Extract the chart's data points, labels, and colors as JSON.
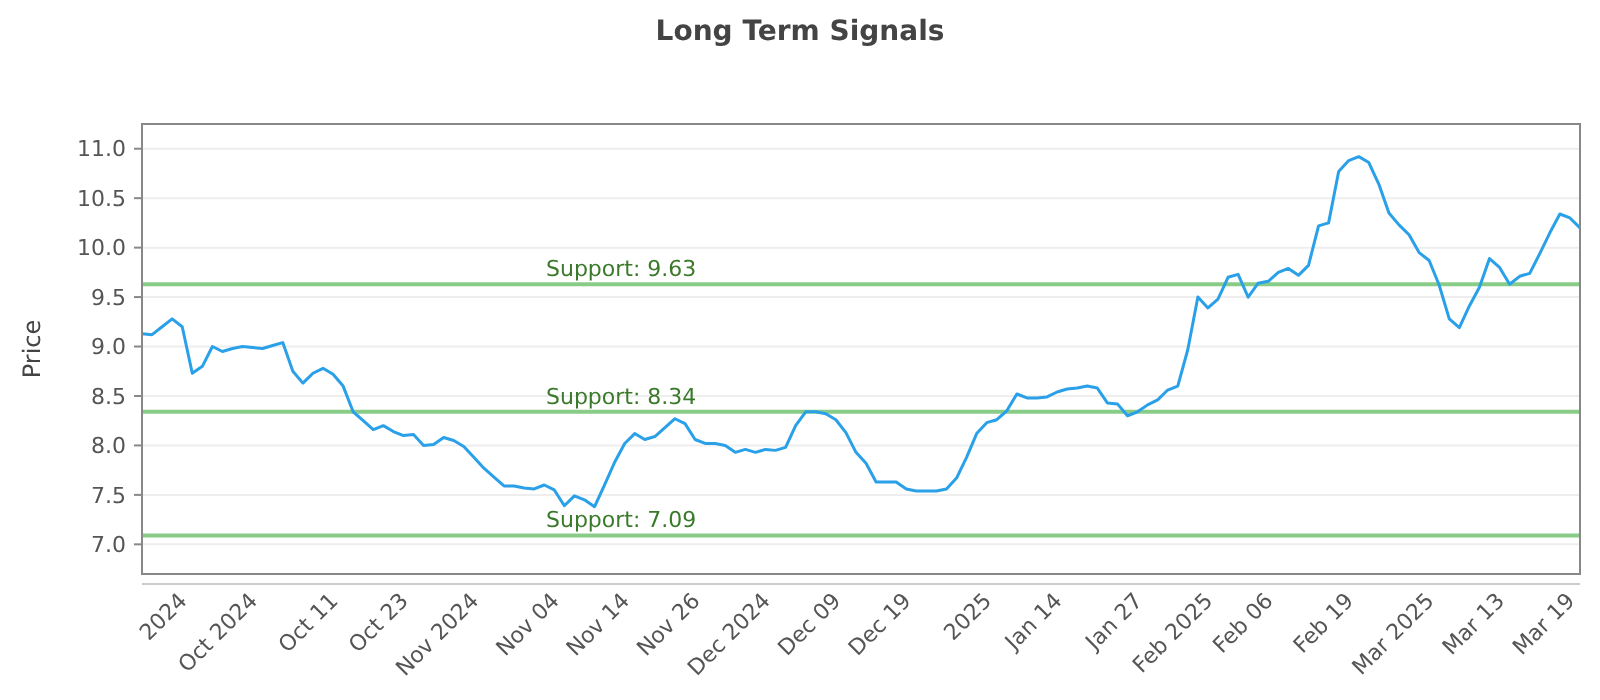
{
  "chart_data": {
    "type": "line",
    "title": "Long Term Signals",
    "ylabel": "Price",
    "categories": [
      null,
      null,
      null,
      null,
      "2024",
      null,
      null,
      null,
      null,
      null,
      null,
      "Oct 2024",
      null,
      null,
      null,
      null,
      null,
      null,
      null,
      "Oct 11",
      null,
      null,
      null,
      null,
      null,
      null,
      "Oct 23",
      null,
      null,
      null,
      null,
      null,
      null,
      "Nov 2024",
      null,
      null,
      null,
      null,
      null,
      null,
      null,
      "Nov 04",
      null,
      null,
      null,
      null,
      null,
      null,
      "Nov 14",
      null,
      null,
      null,
      null,
      null,
      null,
      "Nov 26",
      null,
      null,
      null,
      null,
      null,
      null,
      "Dec 2024",
      null,
      null,
      null,
      null,
      null,
      null,
      "Dec 09",
      null,
      null,
      null,
      null,
      null,
      null,
      "Dec 19",
      null,
      null,
      null,
      null,
      null,
      null,
      null,
      "2025",
      null,
      null,
      null,
      null,
      null,
      null,
      "Jan 14",
      null,
      null,
      null,
      null,
      null,
      null,
      null,
      "Jan 27",
      null,
      null,
      null,
      null,
      null,
      null,
      "Feb 2025",
      null,
      null,
      null,
      null,
      null,
      "Feb 06",
      null,
      null,
      null,
      null,
      null,
      null,
      null,
      "Feb 19",
      null,
      null,
      null,
      null,
      null,
      null,
      null,
      "Mar 2025",
      null,
      null,
      null,
      null,
      null,
      null,
      "Mar 13",
      null,
      null,
      null,
      null,
      null,
      null,
      "Mar 19",
      null
    ],
    "series": [
      {
        "color": "#2aa0e8",
        "values": [
          9.13,
          9.12,
          9.2,
          9.28,
          9.2,
          8.73,
          8.8,
          9.0,
          8.95,
          8.98,
          9.0,
          8.99,
          8.98,
          9.01,
          9.04,
          8.75,
          8.63,
          8.73,
          8.78,
          8.72,
          8.6,
          8.34,
          8.25,
          8.16,
          8.2,
          8.14,
          8.1,
          8.11,
          8.0,
          8.01,
          8.08,
          8.05,
          7.99,
          7.88,
          7.77,
          7.68,
          7.59,
          7.59,
          7.57,
          7.56,
          7.6,
          7.55,
          7.39,
          7.49,
          7.45,
          7.38,
          7.6,
          7.83,
          8.02,
          8.12,
          8.06,
          8.09,
          8.18,
          8.27,
          8.22,
          8.06,
          8.02,
          8.02,
          8.0,
          7.93,
          7.96,
          7.93,
          7.96,
          7.95,
          7.98,
          8.2,
          8.34,
          8.34,
          8.32,
          8.26,
          8.13,
          7.93,
          7.82,
          7.63,
          7.63,
          7.63,
          7.56,
          7.54,
          7.54,
          7.54,
          7.56,
          7.67,
          7.88,
          8.12,
          8.23,
          8.26,
          8.35,
          8.52,
          8.48,
          8.48,
          8.49,
          8.54,
          8.57,
          8.58,
          8.6,
          8.58,
          8.43,
          8.42,
          8.3,
          8.34,
          8.41,
          8.46,
          8.56,
          8.6,
          8.97,
          9.5,
          9.39,
          9.48,
          9.7,
          9.73,
          9.5,
          9.64,
          9.66,
          9.75,
          9.79,
          9.72,
          9.82,
          10.22,
          10.25,
          10.77,
          10.88,
          10.92,
          10.86,
          10.64,
          10.35,
          10.23,
          10.13,
          9.95,
          9.87,
          9.62,
          9.28,
          9.19,
          9.41,
          9.6,
          9.89,
          9.8,
          9.63,
          9.71,
          9.74,
          9.94,
          10.15,
          10.34,
          10.3,
          10.2
        ]
      }
    ],
    "ylim": [
      6.7,
      11.25
    ],
    "yticks": [
      {
        "value": 7,
        "label": "7.0"
      },
      {
        "value": 7.5,
        "label": "7.5"
      },
      {
        "value": 8,
        "label": "8.0"
      },
      {
        "value": 8.5,
        "label": "8.5"
      },
      {
        "value": 9,
        "label": "9.0"
      },
      {
        "value": 9.5,
        "label": "9.5"
      },
      {
        "value": 10,
        "label": "10.0"
      },
      {
        "value": 10.5,
        "label": "10.5"
      },
      {
        "value": 11,
        "label": "11.0"
      }
    ],
    "grid": "y",
    "marker": "none",
    "line_style": "solid",
    "ref_lines": [
      {
        "axis": "y",
        "value": 9.63,
        "label": "Support: 9.63",
        "color": "#88cc88"
      },
      {
        "axis": "y",
        "value": 8.34,
        "label": "Support: 8.34",
        "color": "#88cc88"
      },
      {
        "axis": "y",
        "value": 7.09,
        "label": "Support: 7.09",
        "color": "#88cc88"
      }
    ]
  }
}
